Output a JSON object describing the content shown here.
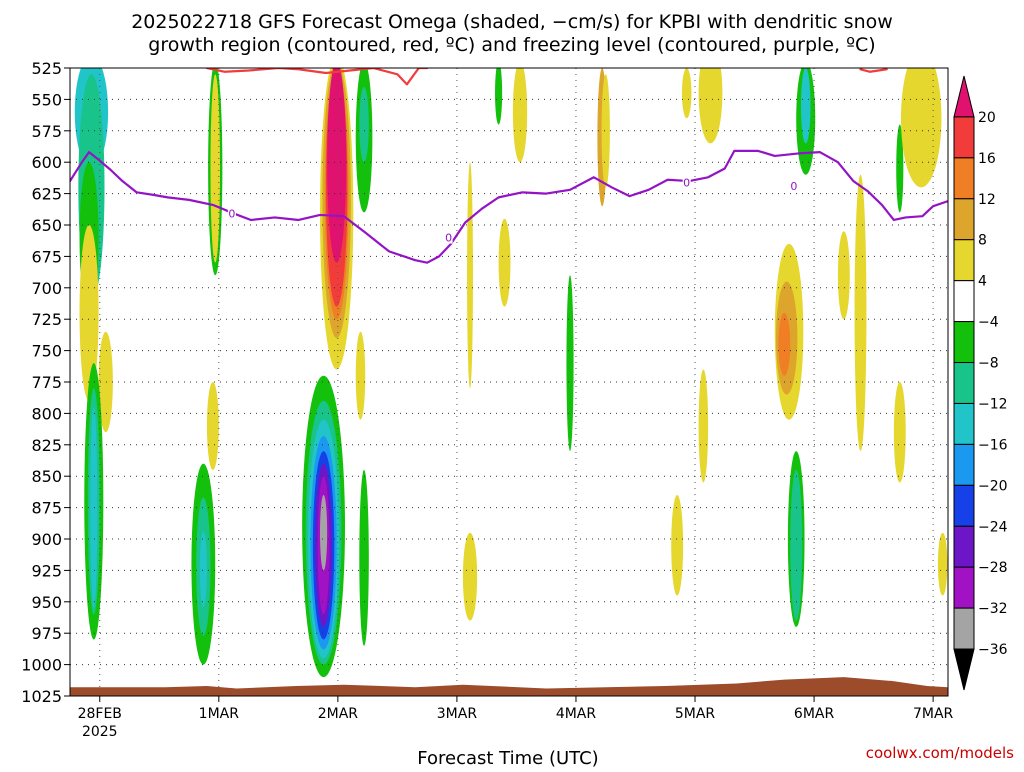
{
  "chart_data": {
    "type": "heatmap",
    "title_lines": [
      "2025022718 GFS Forecast Omega (shaded, −cm/s) for KPBI with dendritic snow",
      "growth region (contoured, red, ºC) and freezing level (contoured, purple, ºC)"
    ],
    "xlabel": "Forecast Time (UTC)",
    "credit": "coolwx.com/models",
    "x_axis": {
      "unit": "days since 2025-02-27 18Z",
      "range": [
        0.0,
        7.375
      ],
      "ticks": [
        {
          "x": 0.25,
          "label": "28FEB",
          "sublabel": "2025"
        },
        {
          "x": 1.25,
          "label": "1MAR"
        },
        {
          "x": 2.25,
          "label": "2MAR"
        },
        {
          "x": 3.25,
          "label": "3MAR"
        },
        {
          "x": 4.25,
          "label": "4MAR"
        },
        {
          "x": 5.25,
          "label": "5MAR"
        },
        {
          "x": 6.25,
          "label": "6MAR"
        },
        {
          "x": 7.25,
          "label": "7MAR"
        }
      ]
    },
    "y_axis": {
      "unit": "hPa",
      "range": [
        1025,
        525
      ],
      "ticks": [
        525,
        550,
        575,
        600,
        625,
        650,
        675,
        700,
        725,
        750,
        775,
        800,
        825,
        850,
        875,
        900,
        925,
        950,
        975,
        1000,
        1025
      ]
    },
    "grid": true,
    "colorbar": {
      "labels": [
        20,
        16,
        12,
        8,
        4,
        -4,
        -8,
        -12,
        -16,
        -20,
        -24,
        -28,
        -32,
        -36
      ],
      "bins": [
        {
          "min": 20,
          "max": null,
          "color": "#e0116f"
        },
        {
          "min": 16,
          "max": 20,
          "color": "#f23c3c"
        },
        {
          "min": 12,
          "max": 16,
          "color": "#ef7e24"
        },
        {
          "min": 8,
          "max": 12,
          "color": "#dda52c"
        },
        {
          "min": 4,
          "max": 8,
          "color": "#e6d72f"
        },
        {
          "min": -4,
          "max": 4,
          "color": "#ffffff"
        },
        {
          "min": -8,
          "max": -4,
          "color": "#13c10d"
        },
        {
          "min": -12,
          "max": -8,
          "color": "#18c48a"
        },
        {
          "min": -16,
          "max": -12,
          "color": "#21c4c8"
        },
        {
          "min": -20,
          "max": -16,
          "color": "#1b99f0"
        },
        {
          "min": -24,
          "max": -20,
          "color": "#1741e8"
        },
        {
          "min": -28,
          "max": -24,
          "color": "#6c16c8"
        },
        {
          "min": -32,
          "max": -28,
          "color": "#a012c4"
        },
        {
          "min": -36,
          "max": -32,
          "color": "#a4a4a4"
        },
        {
          "min": null,
          "max": -36,
          "color": "#000000"
        }
      ]
    },
    "terrain": {
      "color": "#9c4c2a",
      "top_pressure": [
        [
          0.0,
          1018
        ],
        [
          0.8,
          1018
        ],
        [
          1.15,
          1017
        ],
        [
          1.4,
          1019
        ],
        [
          1.9,
          1017
        ],
        [
          2.3,
          1016
        ],
        [
          2.9,
          1018
        ],
        [
          3.3,
          1016
        ],
        [
          4.0,
          1019
        ],
        [
          4.5,
          1018
        ],
        [
          5.0,
          1017
        ],
        [
          5.6,
          1015
        ],
        [
          6.0,
          1012
        ],
        [
          6.5,
          1010
        ],
        [
          6.9,
          1013
        ],
        [
          7.2,
          1017
        ],
        [
          7.375,
          1018
        ]
      ]
    },
    "series": [
      {
        "name": "freezing level",
        "color": "#9314c4",
        "label": "0",
        "label_positions": [
          [
            1.36,
            641
          ],
          [
            3.18,
            660
          ],
          [
            5.18,
            616
          ],
          [
            6.08,
            619
          ]
        ],
        "points": [
          [
            0.0,
            615
          ],
          [
            0.1,
            600
          ],
          [
            0.16,
            592
          ],
          [
            0.24,
            598
          ],
          [
            0.34,
            606
          ],
          [
            0.44,
            615
          ],
          [
            0.56,
            624
          ],
          [
            0.7,
            626
          ],
          [
            0.82,
            628
          ],
          [
            1.0,
            630
          ],
          [
            1.2,
            634
          ],
          [
            1.38,
            641
          ],
          [
            1.52,
            646
          ],
          [
            1.72,
            644
          ],
          [
            1.92,
            646
          ],
          [
            2.1,
            642
          ],
          [
            2.3,
            643
          ],
          [
            2.48,
            656
          ],
          [
            2.68,
            671
          ],
          [
            2.9,
            678
          ],
          [
            3.0,
            680
          ],
          [
            3.1,
            675
          ],
          [
            3.2,
            665
          ],
          [
            3.32,
            648
          ],
          [
            3.46,
            637
          ],
          [
            3.6,
            628
          ],
          [
            3.8,
            624
          ],
          [
            4.0,
            625
          ],
          [
            4.2,
            622
          ],
          [
            4.4,
            612
          ],
          [
            4.55,
            620
          ],
          [
            4.7,
            627
          ],
          [
            4.86,
            622
          ],
          [
            5.02,
            614
          ],
          [
            5.2,
            615
          ],
          [
            5.36,
            612
          ],
          [
            5.5,
            605
          ],
          [
            5.58,
            591
          ],
          [
            5.78,
            591
          ],
          [
            5.92,
            595
          ],
          [
            6.12,
            593
          ],
          [
            6.3,
            592
          ],
          [
            6.45,
            600
          ],
          [
            6.58,
            615
          ],
          [
            6.7,
            623
          ],
          [
            6.82,
            634
          ],
          [
            6.92,
            646
          ],
          [
            7.02,
            644
          ],
          [
            7.16,
            643
          ],
          [
            7.25,
            635
          ],
          [
            7.375,
            631
          ]
        ]
      },
      {
        "name": "dendritic snow growth region",
        "color": "#f23c3c",
        "points": [
          [
            1.15,
            525
          ],
          [
            1.3,
            528
          ],
          [
            1.5,
            527
          ],
          [
            1.75,
            525
          ],
          [
            1.92,
            526
          ],
          [
            2.15,
            529
          ],
          [
            2.35,
            527
          ],
          [
            2.55,
            525
          ],
          [
            2.75,
            530
          ],
          [
            2.83,
            538
          ],
          [
            2.93,
            525
          ],
          [
            3.0,
            525
          ]
        ],
        "extra_segments": [
          [
            [
              6.64,
              526
            ],
            [
              6.72,
              528
            ],
            [
              6.86,
              526
            ]
          ]
        ]
      }
    ],
    "omega_cells": [
      {
        "x": 0.18,
        "p": 560,
        "rx": 0.14,
        "rp": 45,
        "value": -14
      },
      {
        "x": 0.18,
        "p": 620,
        "rx": 0.11,
        "rp": 90,
        "value": -10
      },
      {
        "x": 0.16,
        "p": 660,
        "rx": 0.08,
        "rp": 60,
        "value": -6
      },
      {
        "x": 0.16,
        "p": 720,
        "rx": 0.08,
        "rp": 70,
        "value": 5
      },
      {
        "x": 0.3,
        "p": 775,
        "rx": 0.06,
        "rp": 40,
        "value": 5
      },
      {
        "x": 0.2,
        "p": 870,
        "rx": 0.08,
        "rp": 110,
        "value": -6
      },
      {
        "x": 0.2,
        "p": 870,
        "rx": 0.05,
        "rp": 90,
        "value": -10
      },
      {
        "x": 0.2,
        "p": 875,
        "rx": 0.03,
        "rp": 80,
        "value": -14
      },
      {
        "x": 1.22,
        "p": 605,
        "rx": 0.06,
        "rp": 85,
        "value": -6
      },
      {
        "x": 1.22,
        "p": 605,
        "rx": 0.04,
        "rp": 75,
        "value": 5
      },
      {
        "x": 1.2,
        "p": 810,
        "rx": 0.05,
        "rp": 35,
        "value": 5
      },
      {
        "x": 1.12,
        "p": 920,
        "rx": 0.1,
        "rp": 80,
        "value": -6
      },
      {
        "x": 1.12,
        "p": 922,
        "rx": 0.06,
        "rp": 55,
        "value": -10
      },
      {
        "x": 1.12,
        "p": 924,
        "rx": 0.03,
        "rp": 30,
        "value": -14
      },
      {
        "x": 2.24,
        "p": 640,
        "rx": 0.14,
        "rp": 125,
        "value": 5
      },
      {
        "x": 2.24,
        "p": 630,
        "rx": 0.12,
        "rp": 110,
        "value": 10
      },
      {
        "x": 2.24,
        "p": 625,
        "rx": 0.1,
        "rp": 100,
        "value": 14
      },
      {
        "x": 2.24,
        "p": 620,
        "rx": 0.09,
        "rp": 95,
        "value": 18
      },
      {
        "x": 2.24,
        "p": 600,
        "rx": 0.08,
        "rp": 80,
        "value": 22
      },
      {
        "x": 2.47,
        "p": 580,
        "rx": 0.07,
        "rp": 60,
        "value": -6
      },
      {
        "x": 2.47,
        "p": 570,
        "rx": 0.04,
        "rp": 30,
        "value": -10
      },
      {
        "x": 2.44,
        "p": 770,
        "rx": 0.04,
        "rp": 35,
        "value": 5
      },
      {
        "x": 2.13,
        "p": 890,
        "rx": 0.18,
        "rp": 120,
        "value": -6
      },
      {
        "x": 2.13,
        "p": 895,
        "rx": 0.15,
        "rp": 105,
        "value": -10
      },
      {
        "x": 2.13,
        "p": 900,
        "rx": 0.13,
        "rp": 95,
        "value": -14
      },
      {
        "x": 2.13,
        "p": 903,
        "rx": 0.11,
        "rp": 85,
        "value": -18
      },
      {
        "x": 2.13,
        "p": 905,
        "rx": 0.09,
        "rp": 75,
        "value": -22
      },
      {
        "x": 2.13,
        "p": 905,
        "rx": 0.07,
        "rp": 65,
        "value": -26
      },
      {
        "x": 2.13,
        "p": 905,
        "rx": 0.05,
        "rp": 55,
        "value": -30
      },
      {
        "x": 2.13,
        "p": 895,
        "rx": 0.03,
        "rp": 30,
        "value": -34
      },
      {
        "x": 2.47,
        "p": 915,
        "rx": 0.04,
        "rp": 70,
        "value": -6
      },
      {
        "x": 3.6,
        "p": 545,
        "rx": 0.03,
        "rp": 25,
        "value": -6
      },
      {
        "x": 3.78,
        "p": 560,
        "rx": 0.06,
        "rp": 40,
        "value": 5
      },
      {
        "x": 3.65,
        "p": 680,
        "rx": 0.05,
        "rp": 35,
        "value": 5
      },
      {
        "x": 3.36,
        "p": 690,
        "rx": 0.025,
        "rp": 90,
        "value": 5
      },
      {
        "x": 3.36,
        "p": 930,
        "rx": 0.06,
        "rp": 35,
        "value": 5
      },
      {
        "x": 4.2,
        "p": 760,
        "rx": 0.03,
        "rp": 70,
        "value": -6
      },
      {
        "x": 4.47,
        "p": 580,
        "rx": 0.04,
        "rp": 55,
        "value": 10
      },
      {
        "x": 4.5,
        "p": 575,
        "rx": 0.035,
        "rp": 45,
        "value": 5
      },
      {
        "x": 5.1,
        "p": 905,
        "rx": 0.05,
        "rp": 40,
        "value": 5
      },
      {
        "x": 5.18,
        "p": 545,
        "rx": 0.04,
        "rp": 20,
        "value": 5
      },
      {
        "x": 5.38,
        "p": 545,
        "rx": 0.1,
        "rp": 40,
        "value": 5
      },
      {
        "x": 5.32,
        "p": 810,
        "rx": 0.04,
        "rp": 45,
        "value": 5
      },
      {
        "x": 6.18,
        "p": 565,
        "rx": 0.08,
        "rp": 45,
        "value": -6
      },
      {
        "x": 6.18,
        "p": 555,
        "rx": 0.04,
        "rp": 30,
        "value": -14
      },
      {
        "x": 6.04,
        "p": 735,
        "rx": 0.12,
        "rp": 70,
        "value": 5
      },
      {
        "x": 6.02,
        "p": 740,
        "rx": 0.09,
        "rp": 45,
        "value": 10
      },
      {
        "x": 6.0,
        "p": 745,
        "rx": 0.05,
        "rp": 25,
        "value": 14
      },
      {
        "x": 6.1,
        "p": 900,
        "rx": 0.07,
        "rp": 70,
        "value": -6
      },
      {
        "x": 6.1,
        "p": 905,
        "rx": 0.05,
        "rp": 60,
        "value": -10
      },
      {
        "x": 6.5,
        "p": 690,
        "rx": 0.05,
        "rp": 35,
        "value": 5
      },
      {
        "x": 6.64,
        "p": 720,
        "rx": 0.05,
        "rp": 110,
        "value": 5
      },
      {
        "x": 6.97,
        "p": 605,
        "rx": 0.03,
        "rp": 35,
        "value": -6
      },
      {
        "x": 6.97,
        "p": 815,
        "rx": 0.05,
        "rp": 40,
        "value": 5
      },
      {
        "x": 7.15,
        "p": 565,
        "rx": 0.17,
        "rp": 55,
        "value": 5
      },
      {
        "x": 7.33,
        "p": 920,
        "rx": 0.04,
        "rp": 25,
        "value": 5
      }
    ]
  }
}
